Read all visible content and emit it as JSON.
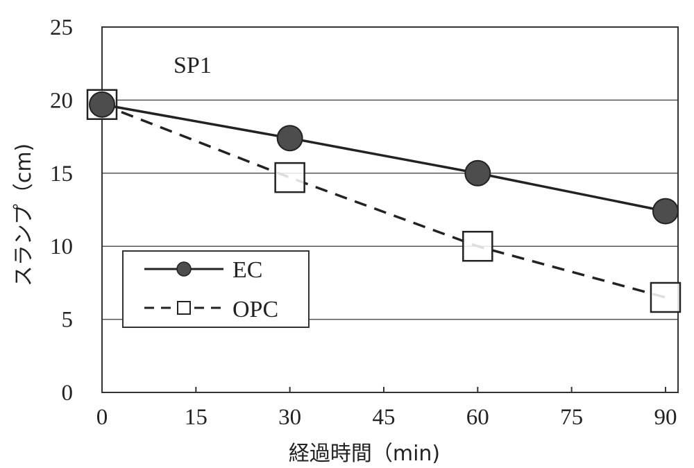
{
  "chart_data": {
    "type": "line",
    "annotation": "SP1",
    "xlabel": "経過時間（min)",
    "ylabel": "スランプ（cm)",
    "x_ticks": [
      0,
      15,
      30,
      45,
      60,
      75,
      90
    ],
    "y_ticks": [
      0,
      5,
      10,
      15,
      20,
      25
    ],
    "xlim": [
      0,
      92
    ],
    "ylim": [
      0,
      25
    ],
    "grid": "horizontal",
    "legend_position": "left",
    "x": [
      0,
      30,
      60,
      90
    ],
    "series": [
      {
        "name": "EC",
        "values": [
          19.7,
          17.4,
          15.0,
          12.4
        ],
        "marker": "circle",
        "line": "solid",
        "color": "#4d4d4d"
      },
      {
        "name": "OPC",
        "values": [
          19.7,
          14.7,
          10.0,
          6.5
        ],
        "marker": "square",
        "line": "dashed",
        "color": "#222222"
      }
    ]
  }
}
